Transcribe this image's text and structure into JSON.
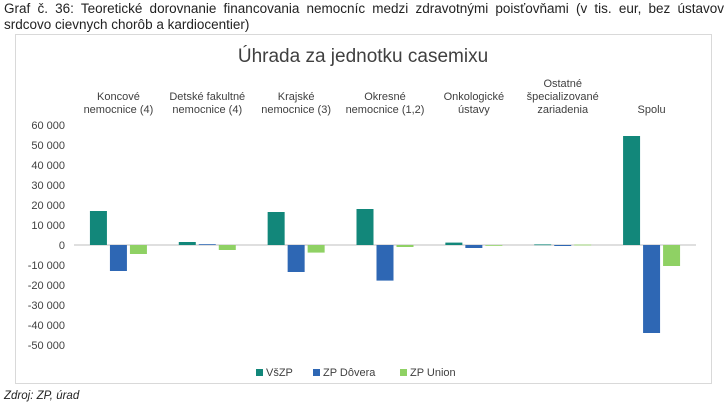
{
  "caption": "Graf č. 36: Teoretické dorovnanie financovania nemocníc medzi zdravotnými poisťovňami (v tis. eur, bez ústavov srdcovo cievnych chorôb a kardiocentier)",
  "source": "Zdroj: ZP, úrad",
  "chart_data": {
    "type": "bar",
    "title": "Úhrada za jednotku casemixu",
    "xlabel": "",
    "ylabel": "",
    "categories": [
      [
        "Koncové",
        "nemocnice (4)"
      ],
      [
        "Detské fakultné",
        "nemocnice (4)"
      ],
      [
        "Krajské",
        "nemocnice (3)"
      ],
      [
        "Okresné",
        "nemocnice (1,2)"
      ],
      [
        "Onkologické",
        "ústavy"
      ],
      [
        "Ostatné",
        "špecializované",
        "zariadenia"
      ],
      [
        "Spolu"
      ]
    ],
    "series": [
      {
        "name": "VšZP",
        "color": "#12877a",
        "values": [
          17000,
          1500,
          16500,
          18000,
          1200,
          300,
          54500
        ]
      },
      {
        "name": "ZP Dôvera",
        "color": "#2e67b4",
        "values": [
          -13000,
          400,
          -13500,
          -17800,
          -1500,
          -500,
          -44000
        ]
      },
      {
        "name": "ZP Union",
        "color": "#8fd164",
        "values": [
          -4500,
          -2500,
          -3800,
          -1000,
          -300,
          200,
          -10500
        ]
      }
    ],
    "ylim": [
      -50000,
      60000
    ],
    "yticks": [
      -50000,
      -40000,
      -30000,
      -20000,
      -10000,
      0,
      10000,
      20000,
      30000,
      40000,
      50000,
      60000
    ],
    "ytick_labels": [
      "-50 000",
      "-40 000",
      "-30 000",
      "-20 000",
      "-10 000",
      "0",
      "10 000",
      "20 000",
      "30 000",
      "40 000",
      "50 000",
      "60 000"
    ],
    "grid": false,
    "legend": "bottom"
  }
}
